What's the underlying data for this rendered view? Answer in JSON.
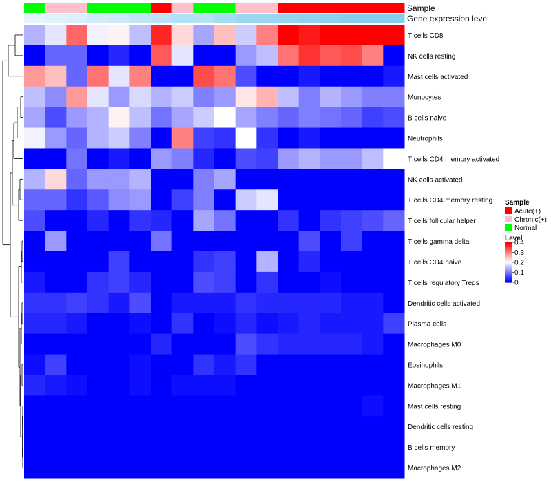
{
  "chart_data": {
    "type": "heatmap",
    "title": "",
    "annotation_rows": [
      "Sample",
      "Gene expression level"
    ],
    "sample_groups": [
      "N",
      "C",
      "C",
      "N",
      "N",
      "N",
      "A",
      "C",
      "N",
      "N",
      "C",
      "C",
      "A",
      "A",
      "A",
      "A",
      "A",
      "A"
    ],
    "expression_level": [
      0.1,
      0.15,
      0.2,
      0.3,
      0.35,
      0.45,
      0.5,
      0.6,
      0.55,
      0.7,
      0.8,
      0.82,
      0.85,
      0.9,
      0.92,
      1.0,
      1.0,
      1.0
    ],
    "rows": [
      {
        "label": "T cells CD8",
        "values": [
          0.14,
          0.18,
          0.32,
          0.19,
          0.21,
          0.15,
          0.37,
          0.23,
          0.13,
          0.25,
          0.16,
          0.3,
          0.4,
          0.38,
          0.4,
          0.4,
          0.4,
          0.4
        ]
      },
      {
        "label": "NK cells resting",
        "values": [
          0.0,
          0.08,
          0.08,
          0.0,
          0.03,
          0.0,
          0.33,
          0.18,
          0.0,
          0.0,
          0.12,
          0.15,
          0.31,
          0.36,
          0.33,
          0.34,
          0.3,
          0.0
        ]
      },
      {
        "label": "Mast cells activated",
        "values": [
          0.28,
          0.25,
          0.08,
          0.31,
          0.18,
          0.3,
          0.0,
          0.0,
          0.34,
          0.31,
          0.06,
          0.0,
          0.0,
          0.02,
          0.0,
          0.0,
          0.0,
          0.02
        ]
      },
      {
        "label": "Monocytes",
        "values": [
          0.15,
          0.11,
          0.28,
          0.18,
          0.12,
          0.17,
          0.14,
          0.16,
          0.1,
          0.12,
          0.22,
          0.26,
          0.15,
          0.1,
          0.14,
          0.12,
          0.1,
          0.1
        ]
      },
      {
        "label": "B cells naive",
        "values": [
          0.13,
          0.06,
          0.12,
          0.14,
          0.21,
          0.15,
          0.09,
          0.13,
          0.16,
          0.2,
          0.13,
          0.1,
          0.08,
          0.1,
          0.09,
          0.08,
          0.05,
          0.06
        ]
      },
      {
        "label": "Neutrophils",
        "values": [
          0.19,
          0.12,
          0.08,
          0.14,
          0.16,
          0.1,
          0.0,
          0.3,
          0.05,
          0.04,
          0.2,
          0.04,
          0.0,
          0.02,
          0.0,
          0.0,
          0.0,
          0.0
        ]
      },
      {
        "label": "T cells CD4 memory activated",
        "values": [
          0.0,
          0.0,
          0.09,
          0.0,
          0.02,
          0.0,
          0.12,
          0.1,
          0.03,
          0.0,
          0.06,
          0.05,
          0.12,
          0.14,
          0.12,
          0.12,
          0.15,
          0.2
        ]
      },
      {
        "label": "NK cells activated",
        "values": [
          0.14,
          0.23,
          0.08,
          0.12,
          0.12,
          0.14,
          0.0,
          0.0,
          0.1,
          0.13,
          0.0,
          0.0,
          0.0,
          0.0,
          0.0,
          0.0,
          0.0,
          0.0
        ]
      },
      {
        "label": "T cells CD4 memory resting",
        "values": [
          0.08,
          0.08,
          0.04,
          0.07,
          0.11,
          0.12,
          0.0,
          0.05,
          0.1,
          0.0,
          0.16,
          0.18,
          0.0,
          0.0,
          0.0,
          0.0,
          0.0,
          0.0
        ]
      },
      {
        "label": "T cells follicular helper",
        "values": [
          0.06,
          0.0,
          0.0,
          0.03,
          0.0,
          0.04,
          0.03,
          0.0,
          0.13,
          0.09,
          0.0,
          0.0,
          0.04,
          0.0,
          0.04,
          0.05,
          0.06,
          0.08
        ]
      },
      {
        "label": "T cells gamma delta",
        "values": [
          0.0,
          0.12,
          0.0,
          0.0,
          0.0,
          0.0,
          0.09,
          0.0,
          0.0,
          0.0,
          0.0,
          0.0,
          0.0,
          0.06,
          0.0,
          0.05,
          0.0,
          0.0
        ]
      },
      {
        "label": "T cells CD4 naive",
        "values": [
          0.0,
          0.0,
          0.0,
          0.0,
          0.05,
          0.0,
          0.0,
          0.0,
          0.04,
          0.05,
          0.0,
          0.14,
          0.0,
          0.03,
          0.0,
          0.0,
          0.0,
          0.0
        ]
      },
      {
        "label": "T cells regulatory  Tregs",
        "values": [
          0.02,
          0.0,
          0.0,
          0.04,
          0.05,
          0.03,
          0.0,
          0.0,
          0.06,
          0.05,
          0.0,
          0.04,
          0.0,
          0.0,
          0.01,
          0.0,
          0.0,
          0.0
        ]
      },
      {
        "label": "Dendritic cells activated",
        "values": [
          0.04,
          0.04,
          0.05,
          0.04,
          0.02,
          0.06,
          0.0,
          0.02,
          0.02,
          0.02,
          0.04,
          0.03,
          0.03,
          0.03,
          0.03,
          0.02,
          0.02,
          0.0
        ]
      },
      {
        "label": "Plasma cells",
        "values": [
          0.03,
          0.03,
          0.02,
          0.0,
          0.0,
          0.01,
          0.0,
          0.04,
          0.0,
          0.01,
          0.03,
          0.01,
          0.02,
          0.03,
          0.02,
          0.02,
          0.02,
          0.05
        ]
      },
      {
        "label": "Macrophages M0",
        "values": [
          0.0,
          0.0,
          0.0,
          0.0,
          0.0,
          0.0,
          0.03,
          0.0,
          0.0,
          0.0,
          0.06,
          0.04,
          0.03,
          0.03,
          0.03,
          0.03,
          0.02,
          0.0
        ]
      },
      {
        "label": "Eosinophils",
        "values": [
          0.01,
          0.05,
          0.0,
          0.0,
          0.0,
          0.01,
          0.0,
          0.0,
          0.04,
          0.02,
          0.04,
          0.0,
          0.0,
          0.0,
          0.0,
          0.0,
          0.0,
          0.0
        ]
      },
      {
        "label": "Macrophages M1",
        "values": [
          0.03,
          0.02,
          0.01,
          0.0,
          0.0,
          0.01,
          0.0,
          0.01,
          0.01,
          0.01,
          0.0,
          0.0,
          0.0,
          0.0,
          0.0,
          0.0,
          0.0,
          0.0
        ]
      },
      {
        "label": "Mast cells resting",
        "values": [
          0.0,
          0.0,
          0.0,
          0.0,
          0.0,
          0.0,
          0.0,
          0.0,
          0.0,
          0.0,
          0.0,
          0.0,
          0.0,
          0.0,
          0.0,
          0.0,
          0.01,
          0.0
        ]
      },
      {
        "label": "Dendritic cells resting",
        "values": [
          0.0,
          0.0,
          0.0,
          0.0,
          0.0,
          0.0,
          0.0,
          0.0,
          0.0,
          0.0,
          0.0,
          0.0,
          0.0,
          0.0,
          0.0,
          0.0,
          0.0,
          0.0
        ]
      },
      {
        "label": "B cells memory",
        "values": [
          0.0,
          0.0,
          0.0,
          0.0,
          0.0,
          0.0,
          0.0,
          0.0,
          0.0,
          0.0,
          0.0,
          0.0,
          0.0,
          0.0,
          0.0,
          0.0,
          0.0,
          0.0
        ]
      },
      {
        "label": "Macrophages M2",
        "values": [
          0.0,
          0.0,
          0.0,
          0.0,
          0.0,
          0.0,
          0.0,
          0.0,
          0.0,
          0.0,
          0.0,
          0.0,
          0.0,
          0.0,
          0.0,
          0.0,
          0.0,
          0.0
        ]
      }
    ],
    "color_scale": {
      "min": 0,
      "max": 0.4,
      "low": "#0000ff",
      "mid": "#ffffff",
      "high": "#ff0000"
    },
    "legend": {
      "sample": {
        "title": "Sample",
        "entries": [
          {
            "key": "A",
            "label": "Acute(+)",
            "color": "#ff0000"
          },
          {
            "key": "C",
            "label": "Chronic(+)",
            "color": "#ffc0cb"
          },
          {
            "key": "N",
            "label": "Normal",
            "color": "#00ff00"
          }
        ]
      },
      "level": {
        "title": "Level",
        "ticks": [
          "0",
          "0.1",
          "0.2",
          "0.3",
          "0.4"
        ]
      }
    },
    "expression_colors": {
      "low": "#f0f8ff",
      "high": "#87ceeb"
    },
    "dendrogram": "row clustering tree (left side)"
  }
}
